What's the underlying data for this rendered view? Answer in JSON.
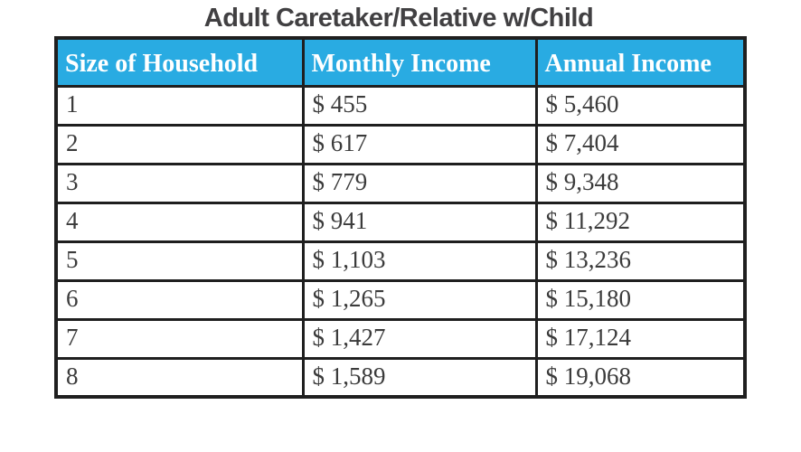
{
  "chart_data": {
    "type": "table",
    "title": "Adult Caretaker/Relative w/Child",
    "columns": [
      "Size of Household",
      "Monthly Income",
      "Annual Income"
    ],
    "rows": [
      [
        "1",
        "$ 455",
        "$ 5,460"
      ],
      [
        "2",
        "$ 617",
        "$ 7,404"
      ],
      [
        "3",
        "$ 779",
        "$ 9,348"
      ],
      [
        "4",
        "$ 941",
        "$ 11,292"
      ],
      [
        "5",
        "$ 1,103",
        "$ 13,236"
      ],
      [
        "6",
        "$ 1,265",
        "$ 15,180"
      ],
      [
        "7",
        "$ 1,427",
        "$ 17,124"
      ],
      [
        "8",
        "$ 1,589",
        "$ 19,068"
      ]
    ],
    "layout": {
      "header_position": "top",
      "grid": true,
      "column_alignment": [
        "left",
        "left",
        "left"
      ]
    }
  },
  "colors": {
    "header_bg": "#29abe2",
    "header_text": "#ffffff",
    "border": "#1f1f1f",
    "title_text": "#414042",
    "body_text": "#3b3b3b",
    "page_bg": "#ffffff"
  }
}
